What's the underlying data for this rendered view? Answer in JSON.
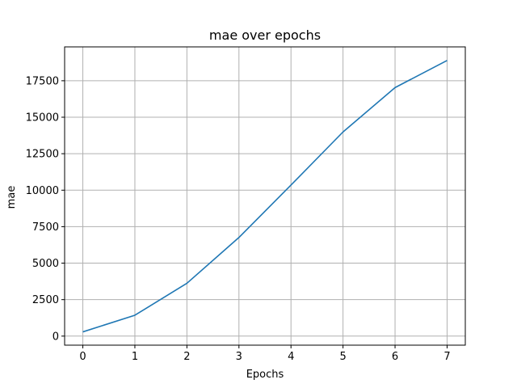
{
  "chart_data": {
    "type": "line",
    "title": "mae over epochs",
    "xlabel": "Epochs",
    "ylabel": "mae",
    "grid": true,
    "xlim": [
      -0.35,
      7.35
    ],
    "ylim": [
      -620,
      19820
    ],
    "x_ticks": [
      0,
      1,
      2,
      3,
      4,
      5,
      6,
      7
    ],
    "y_ticks": [
      0,
      2500,
      5000,
      7500,
      10000,
      12500,
      15000,
      17500
    ],
    "line_color": "#1f77b4",
    "grid_color": "#b0b0b0",
    "series": [
      {
        "x": [
          0,
          1,
          2,
          3,
          4,
          5,
          6,
          7
        ],
        "values": [
          290,
          1430,
          3620,
          6760,
          10350,
          13990,
          17030,
          18890
        ]
      }
    ]
  }
}
